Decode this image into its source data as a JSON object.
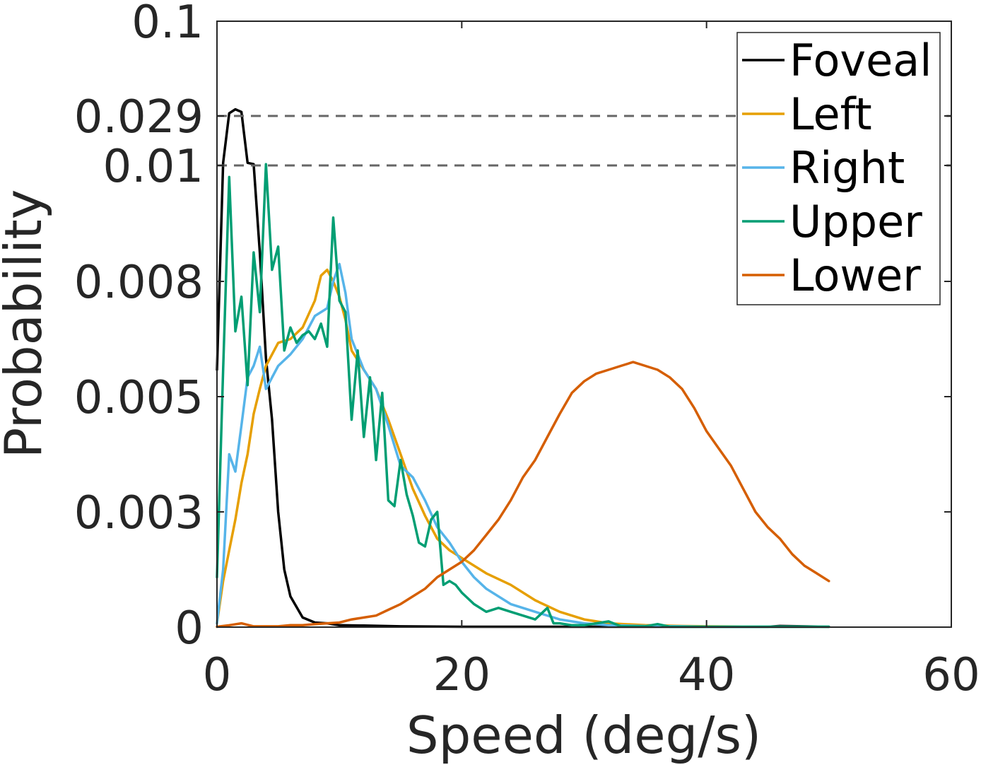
{
  "chart_data": {
    "type": "line",
    "xlabel": "Speed (deg/s)",
    "ylabel": "Probability",
    "xlim": [
      0,
      60
    ],
    "x_ticks": [
      "0",
      "20",
      "40",
      "60"
    ],
    "y_ticks": [
      "0",
      "0.003",
      "0.005",
      "0.008",
      "0.01",
      "0.029",
      "0.1"
    ],
    "y_axis_note": "broken axis: segments 0–0.01, 0.01–0.029, 0.029–0.1",
    "break_lines": [
      "0.029",
      "0.01"
    ],
    "legend": "top-right",
    "grid": false,
    "series": [
      {
        "name": "Foveal",
        "color": "#000000",
        "x": [
          0,
          0.5,
          1,
          1.5,
          2,
          2.5,
          3,
          3.5,
          4,
          4.5,
          5,
          5.5,
          6,
          7,
          8,
          9,
          10,
          12,
          15,
          20,
          25,
          30,
          35,
          40,
          45,
          46,
          50
        ],
        "y": [
          0.0057,
          0.011,
          0.031,
          0.034,
          0.032,
          0.011,
          0.0105,
          0.0085,
          0.006,
          0.0046,
          0.003,
          0.0015,
          0.0008,
          0.00025,
          0.00012,
          0.0001,
          5e-05,
          4e-05,
          2e-05,
          1e-05,
          1e-05,
          1e-05,
          1e-05,
          1e-05,
          1e-05,
          3e-05,
          1e-05
        ]
      },
      {
        "name": "Left",
        "color": "#E69F00",
        "x": [
          0,
          0.5,
          1,
          1.5,
          2,
          2.5,
          3,
          3.5,
          4,
          5,
          6,
          7,
          8,
          8.5,
          9,
          9.5,
          10,
          10.5,
          11,
          12,
          13,
          14,
          15,
          16,
          17,
          18,
          19,
          20,
          22,
          24,
          26,
          28,
          30,
          32,
          35,
          38,
          40,
          45,
          50
        ],
        "y": [
          0.0001,
          0.0012,
          0.002,
          0.0028,
          0.0035,
          0.004,
          0.0047,
          0.0052,
          0.0058,
          0.0064,
          0.0065,
          0.0068,
          0.0075,
          0.0081,
          0.0082,
          0.008,
          0.0076,
          0.007,
          0.0062,
          0.0057,
          0.0052,
          0.0046,
          0.004,
          0.0034,
          0.0029,
          0.0023,
          0.002,
          0.0018,
          0.0014,
          0.0011,
          0.0007,
          0.0004,
          0.0002,
          0.0001,
          5e-05,
          3e-05,
          2e-05,
          1e-05,
          1e-05
        ]
      },
      {
        "name": "Right",
        "color": "#56B4E9",
        "x": [
          0,
          0.5,
          1,
          1.5,
          2,
          2.5,
          3,
          3.5,
          4,
          5,
          6,
          7,
          8,
          9,
          9.5,
          10,
          10.5,
          11,
          12,
          13,
          14,
          15,
          16,
          17,
          18,
          19,
          20,
          21,
          22,
          24,
          26,
          28,
          30,
          32,
          35,
          38,
          40,
          45,
          50
        ],
        "y": [
          0.0001,
          0.0015,
          0.004,
          0.0037,
          0.0045,
          0.0055,
          0.0058,
          0.0063,
          0.0052,
          0.0058,
          0.0061,
          0.0065,
          0.0071,
          0.0073,
          0.008,
          0.0083,
          0.0077,
          0.0065,
          0.0057,
          0.0052,
          0.0045,
          0.0038,
          0.0036,
          0.0032,
          0.0026,
          0.0022,
          0.0017,
          0.0013,
          0.001,
          0.0006,
          0.0004,
          0.0002,
          0.0001,
          5e-05,
          3e-05,
          2e-05,
          1e-05,
          1e-05,
          1e-05
        ]
      },
      {
        "name": "Upper",
        "color": "#009E73",
        "x": [
          0,
          0.5,
          1,
          1.5,
          2,
          2.5,
          3,
          3.5,
          4,
          4.5,
          5,
          5.5,
          6,
          6.5,
          7,
          7.5,
          8,
          8.5,
          9,
          9.5,
          10,
          10.5,
          11,
          11.5,
          12,
          12.5,
          13,
          13.5,
          14,
          14.5,
          15,
          15.5,
          16,
          16.5,
          17,
          17.5,
          18,
          18.5,
          19,
          19.5,
          20,
          21,
          22,
          23,
          24,
          25,
          26,
          27,
          27.5,
          28,
          29,
          30,
          31,
          32,
          33,
          34,
          35,
          36,
          37,
          38,
          40,
          45,
          50
        ],
        "y": [
          0.0013,
          0.0057,
          0.0098,
          0.0067,
          0.0076,
          0.0053,
          0.0085,
          0.0072,
          0.0105,
          0.0082,
          0.0086,
          0.0062,
          0.0068,
          0.0064,
          0.0066,
          0.0067,
          0.0065,
          0.0069,
          0.0063,
          0.0091,
          0.0075,
          0.0072,
          0.0046,
          0.0062,
          0.0043,
          0.0055,
          0.0039,
          0.0051,
          0.0032,
          0.0031,
          0.0039,
          0.0033,
          0.0029,
          0.0022,
          0.0021,
          0.0028,
          0.003,
          0.0011,
          0.0012,
          0.0011,
          0.0009,
          0.0006,
          0.0004,
          0.0005,
          0.0004,
          0.0003,
          0.0002,
          0.0005,
          0.0001,
          0.0001,
          5e-05,
          5e-05,
          0.0001,
          0.00015,
          2e-05,
          2e-05,
          2e-05,
          8e-05,
          1e-05,
          1e-05,
          1e-05,
          1e-05,
          1e-05
        ]
      },
      {
        "name": "Lower",
        "color": "#D55E00",
        "x": [
          0,
          1,
          2,
          3,
          4,
          5,
          6,
          7,
          8,
          9,
          10,
          11,
          12,
          13,
          14,
          15,
          16,
          17,
          18,
          19,
          20,
          21,
          22,
          23,
          24,
          25,
          26,
          27,
          28,
          29,
          30,
          31,
          32,
          33,
          34,
          35,
          36,
          37,
          38,
          39,
          40,
          41,
          42,
          43,
          44,
          45,
          46,
          47,
          48,
          49,
          50
        ],
        "y": [
          1e-05,
          5e-05,
          0.0001,
          2e-05,
          2e-05,
          2e-05,
          5e-05,
          5e-05,
          8e-05,
          0.0001,
          0.00012,
          0.0002,
          0.00025,
          0.0003,
          0.00045,
          0.0006,
          0.0008,
          0.001,
          0.0013,
          0.0015,
          0.0017,
          0.002,
          0.0024,
          0.0028,
          0.0032,
          0.0036,
          0.0039,
          0.0043,
          0.0047,
          0.0051,
          0.0054,
          0.0056,
          0.0057,
          0.0058,
          0.0059,
          0.0058,
          0.0057,
          0.0055,
          0.0052,
          0.0048,
          0.0044,
          0.0041,
          0.0038,
          0.0034,
          0.003,
          0.0026,
          0.0023,
          0.0019,
          0.0016,
          0.0014,
          0.0012
        ]
      }
    ]
  }
}
